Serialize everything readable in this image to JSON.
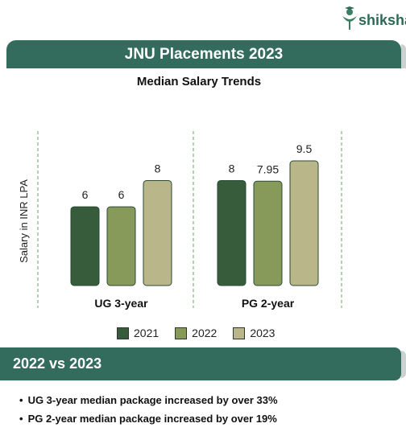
{
  "brand": {
    "name": "shiksha"
  },
  "header": {
    "title": "JNU Placements 2023"
  },
  "chart_data": {
    "type": "bar",
    "title": "Median Salary Trends",
    "ylabel": "Salary in INR LPA",
    "categories": [
      "UG 3-year",
      "PG 2-year"
    ],
    "series": [
      {
        "name": "2021",
        "values": [
          6,
          8
        ],
        "labels": [
          "6",
          "8"
        ],
        "color": "#365c3c"
      },
      {
        "name": "2022",
        "values": [
          6,
          7.95
        ],
        "labels": [
          "6",
          "7.95"
        ],
        "color": "#889a5a"
      },
      {
        "name": "2023",
        "values": [
          8,
          9.5
        ],
        "labels": [
          "8",
          "9.5"
        ],
        "color": "#b9b789"
      }
    ],
    "ylim": [
      0,
      9.5
    ],
    "grid": false,
    "legend": "bottom"
  },
  "comparison": {
    "heading": "2022 vs 2023",
    "points": [
      "UG 3-year median package increased by over 33%",
      "PG 2-year median package increased by over 19%"
    ]
  },
  "colors": {
    "accent": "#336b5d",
    "divider": "#6a9e72"
  }
}
